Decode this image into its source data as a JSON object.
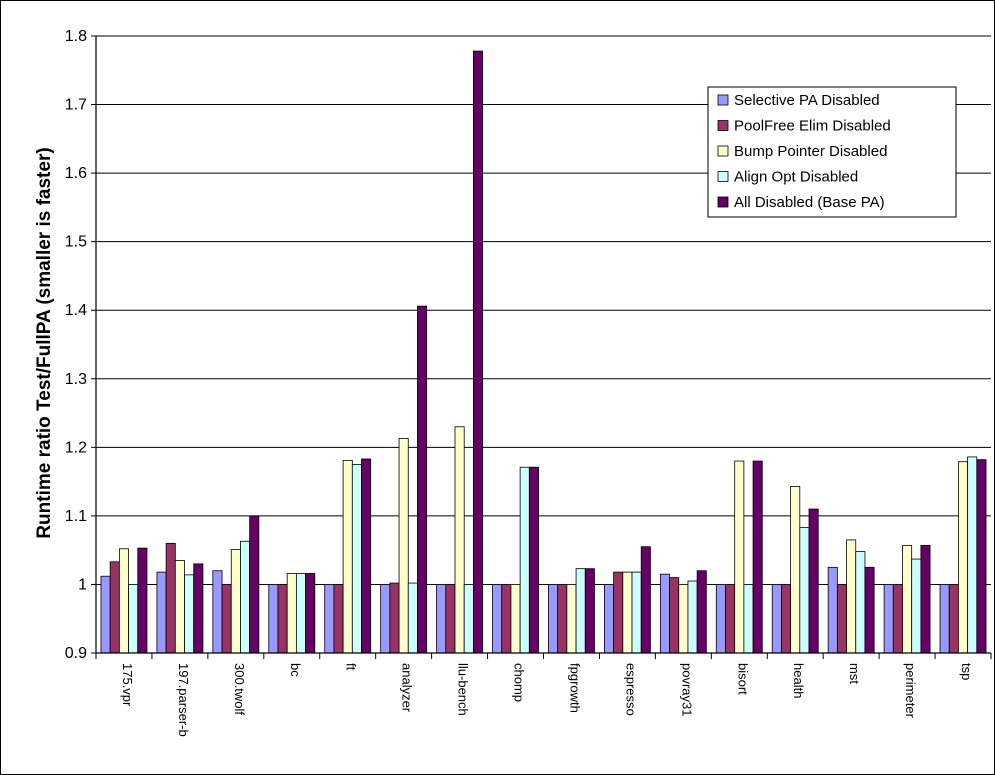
{
  "chart_data": {
    "type": "bar",
    "title": "",
    "xlabel": "",
    "ylabel": "Runtime ratio Test/FullPA (smaller is faster)",
    "ylim": [
      0.9,
      1.8
    ],
    "yticks": [
      "0.9",
      "1",
      "1.1",
      "1.2",
      "1.3",
      "1.4",
      "1.5",
      "1.6",
      "1.7",
      "1.8"
    ],
    "grid": "horizontal",
    "legend_position": "top-right",
    "categories": [
      "175.vpr",
      "197.parser-b",
      "300.twolf",
      "bc",
      "ft",
      "analyzer",
      "llu-bench",
      "chomp",
      "fpgrowth",
      "espresso",
      "povray31",
      "bisort",
      "health",
      "mst",
      "perimeter",
      "tsp"
    ],
    "series": [
      {
        "name": "Selective PA Disabled",
        "color": "#9999ff",
        "values": [
          1.012,
          1.018,
          1.02,
          1.0,
          1.0,
          1.0,
          1.0,
          1.0,
          1.0,
          1.0,
          1.015,
          1.0,
          1.0,
          1.025,
          1.0,
          1.0
        ]
      },
      {
        "name": "PoolFree Elim Disabled",
        "color": "#993366",
        "values": [
          1.033,
          1.06,
          1.0,
          1.0,
          1.0,
          1.002,
          1.0,
          1.0,
          1.0,
          1.018,
          1.01,
          1.0,
          1.0,
          1.0,
          1.0,
          1.0
        ]
      },
      {
        "name": "Bump Pointer Disabled",
        "color": "#ffffcc",
        "values": [
          1.052,
          1.035,
          1.051,
          1.016,
          1.181,
          1.213,
          1.23,
          1.0,
          1.0,
          1.018,
          1.0,
          1.18,
          1.143,
          1.065,
          1.057,
          1.179
        ]
      },
      {
        "name": "Align Opt Disabled",
        "color": "#ccffff",
        "values": [
          1.0,
          1.014,
          1.063,
          1.016,
          1.175,
          1.002,
          1.0,
          1.171,
          1.023,
          1.018,
          1.005,
          1.0,
          1.083,
          1.048,
          1.037,
          1.186
        ]
      },
      {
        "name": "All Disabled (Base PA)",
        "color": "#660066",
        "values": [
          1.053,
          1.03,
          1.1,
          1.016,
          1.183,
          1.406,
          1.778,
          1.171,
          1.023,
          1.055,
          1.02,
          1.18,
          1.11,
          1.025,
          1.057,
          1.182
        ]
      }
    ]
  }
}
